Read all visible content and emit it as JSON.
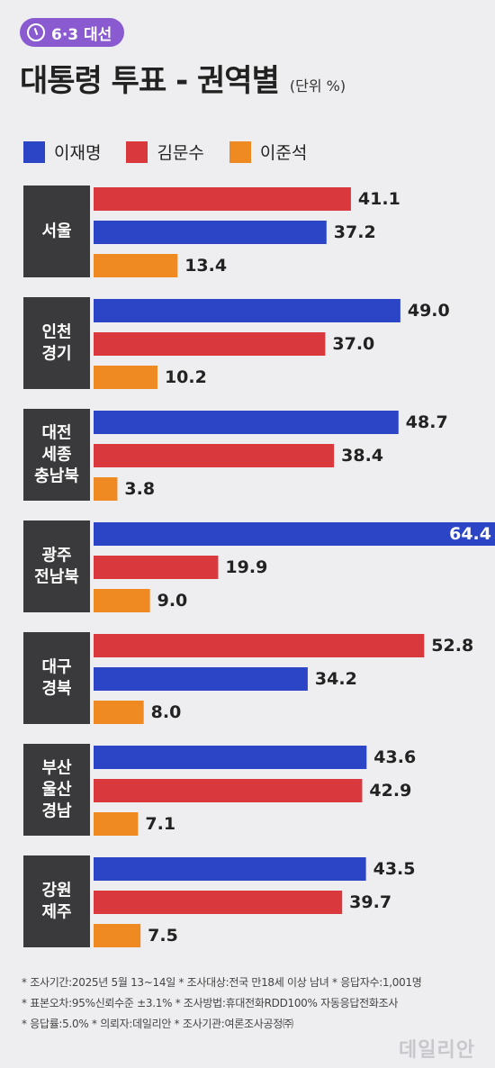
{
  "badge": {
    "label": "6·3 대선"
  },
  "header": {
    "title": "대통령 투표 - 권역별",
    "unit": "(단위 %)"
  },
  "colors": {
    "lee_jm": "#2b45c6",
    "kim_ms": "#d9383c",
    "lee_js": "#ee8a21",
    "region_box": "#3a3a3c"
  },
  "chart_data": {
    "type": "bar",
    "orientation": "horizontal",
    "title": "대통령 투표 - 권역별",
    "unit": "(단위 %)",
    "legend_position": "top-left",
    "xlim": [
      0,
      64.4
    ],
    "series": [
      {
        "name": "이재명",
        "color": "#2b45c6"
      },
      {
        "name": "김문수",
        "color": "#d9383c"
      },
      {
        "name": "이준석",
        "color": "#ee8a21"
      }
    ],
    "groups": [
      {
        "region": [
          "서울"
        ],
        "bars": [
          {
            "series": "김문수",
            "value": 41.1
          },
          {
            "series": "이재명",
            "value": 37.2
          },
          {
            "series": "이준석",
            "value": 13.4
          }
        ]
      },
      {
        "region": [
          "인천",
          "경기"
        ],
        "bars": [
          {
            "series": "이재명",
            "value": 49.0
          },
          {
            "series": "김문수",
            "value": 37.0
          },
          {
            "series": "이준석",
            "value": 10.2
          }
        ]
      },
      {
        "region": [
          "대전",
          "세종",
          "충남북"
        ],
        "bars": [
          {
            "series": "이재명",
            "value": 48.7
          },
          {
            "series": "김문수",
            "value": 38.4
          },
          {
            "series": "이준석",
            "value": 3.8
          }
        ]
      },
      {
        "region": [
          "광주",
          "전남북"
        ],
        "bars": [
          {
            "series": "이재명",
            "value": 64.4
          },
          {
            "series": "김문수",
            "value": 19.9
          },
          {
            "series": "이준석",
            "value": 9.0
          }
        ]
      },
      {
        "region": [
          "대구",
          "경북"
        ],
        "bars": [
          {
            "series": "김문수",
            "value": 52.8
          },
          {
            "series": "이재명",
            "value": 34.2
          },
          {
            "series": "이준석",
            "value": 8.0
          }
        ]
      },
      {
        "region": [
          "부산",
          "울산",
          "경남"
        ],
        "bars": [
          {
            "series": "이재명",
            "value": 43.6
          },
          {
            "series": "김문수",
            "value": 42.9
          },
          {
            "series": "이준석",
            "value": 7.1
          }
        ]
      },
      {
        "region": [
          "강원",
          "제주"
        ],
        "bars": [
          {
            "series": "이재명",
            "value": 43.5
          },
          {
            "series": "김문수",
            "value": 39.7
          },
          {
            "series": "이준석",
            "value": 7.5
          }
        ]
      }
    ]
  },
  "footer": {
    "lines": [
      "* 조사기간:2025년 5월 13~14일 * 조사대상:전국 만18세 이상 남녀 * 응답자수:1,001명",
      "* 표본오차:95%신뢰수준 ±3.1% * 조사방법:휴대전화RDD100% 자동응답전화조사",
      "* 응답률:5.0% * 의뢰자:데일리안 * 조사기관:여론조사공정㈜"
    ]
  },
  "watermark": "데일리안"
}
